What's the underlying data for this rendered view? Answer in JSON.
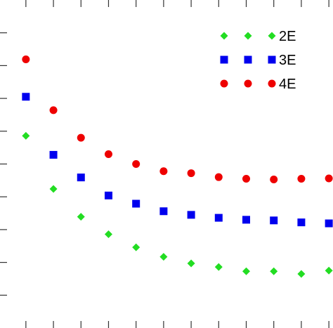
{
  "chart_data": {
    "type": "scatter",
    "x": [
      1,
      2,
      3,
      4,
      5,
      6,
      7,
      8,
      9,
      10,
      11,
      12
    ],
    "xlim": [
      0.06,
      12.15
    ],
    "ylim": [
      0,
      10
    ],
    "series": [
      {
        "name": "2E",
        "color": "#22dd22",
        "marker": "diamond",
        "values": [
          5.86,
          4.24,
          3.39,
          2.86,
          2.46,
          2.17,
          1.97,
          1.86,
          1.73,
          1.73,
          1.65,
          1.75
        ]
      },
      {
        "name": "3E",
        "color": "#0000ee",
        "marker": "square",
        "values": [
          7.05,
          5.28,
          4.59,
          4.04,
          3.79,
          3.56,
          3.45,
          3.36,
          3.3,
          3.28,
          3.22,
          3.19
        ]
      },
      {
        "name": "4E",
        "color": "#ee0000",
        "marker": "circle",
        "values": [
          8.19,
          6.64,
          5.8,
          5.3,
          5.0,
          4.78,
          4.72,
          4.6,
          4.55,
          4.53,
          4.55,
          4.56
        ]
      }
    ],
    "legend": "top-right",
    "grid": false
  }
}
